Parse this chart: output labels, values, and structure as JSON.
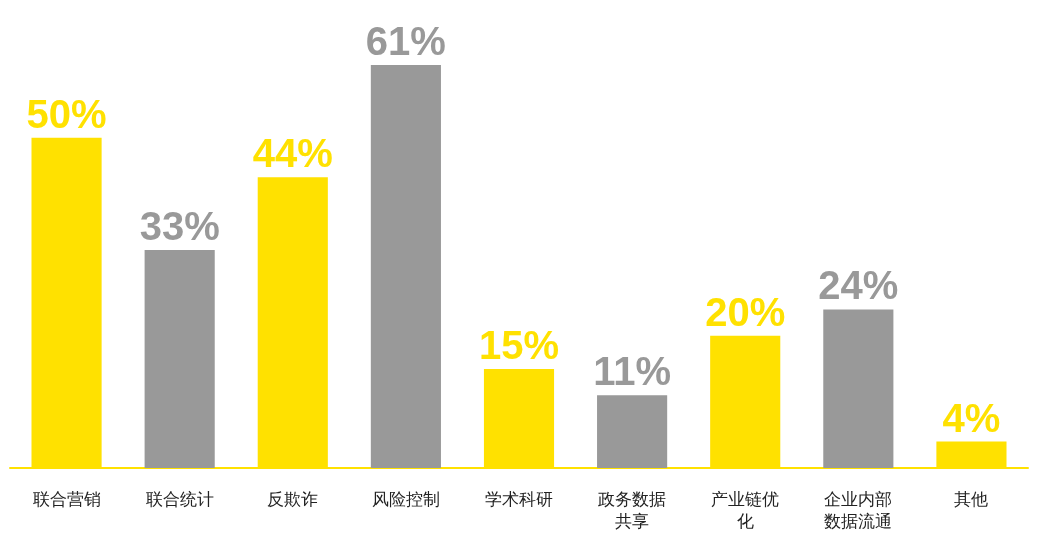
{
  "chart_data": {
    "type": "bar",
    "categories": [
      "联合营销",
      "联合统计",
      "反欺诈",
      "风险控制",
      "学术科研",
      "政务数据共享",
      "产业链优化",
      "企业内部数据流通",
      "其他"
    ],
    "values": [
      50,
      33,
      44,
      61,
      15,
      11,
      20,
      24,
      4
    ],
    "colors": [
      "#ffe100",
      "#999999",
      "#ffe100",
      "#999999",
      "#ffe100",
      "#999999",
      "#ffe100",
      "#999999",
      "#ffe100"
    ],
    "value_labels": [
      "50%",
      "33%",
      "44%",
      "61%",
      "15%",
      "11%",
      "20%",
      "24%",
      "4%"
    ]
  }
}
